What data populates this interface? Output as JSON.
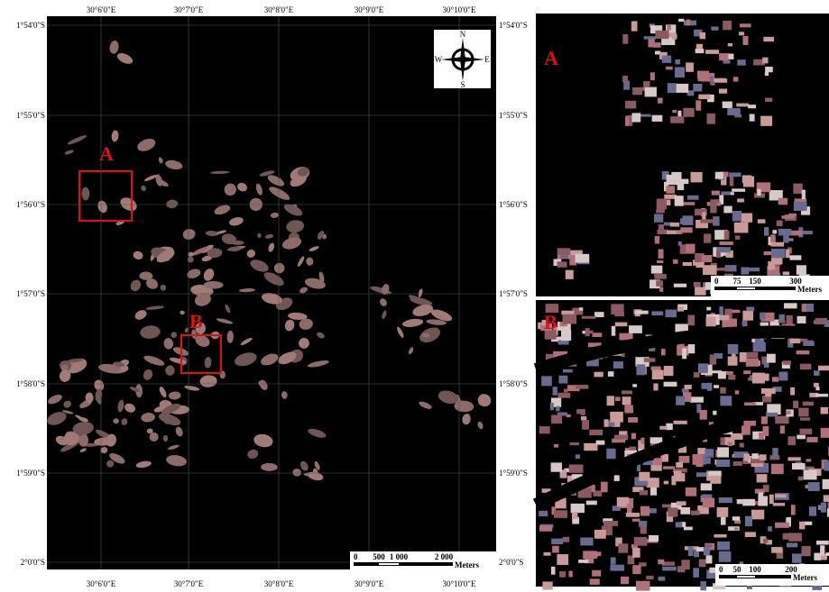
{
  "main_map": {
    "longitude_labels": [
      "30°6'0\"E",
      "30°7'0\"E",
      "30°8'0\"E",
      "30°9'0\"E",
      "30°10'0\"E"
    ],
    "latitude_labels": [
      "1°54'0\"S",
      "1°55'0\"S",
      "1°56'0\"S",
      "1°57'0\"S",
      "1°58'0\"S",
      "1°59'0\"S",
      "2°0'0\"S"
    ],
    "compass": {
      "n": "N",
      "s": "S",
      "e": "E",
      "w": "W"
    },
    "regions": [
      {
        "label": "A"
      },
      {
        "label": "B"
      }
    ],
    "scale_bar": {
      "ticks": [
        "0",
        "500",
        "1 000",
        "2 000"
      ],
      "unit": "Meters"
    }
  },
  "inset_a": {
    "label": "A",
    "scale_bar": {
      "ticks": [
        "0",
        "75",
        "150",
        "300"
      ],
      "unit": "Meters"
    }
  },
  "inset_b": {
    "label": "B",
    "scale_bar": {
      "ticks": [
        "0",
        "50",
        "100",
        "200"
      ],
      "unit": "Meters"
    }
  }
}
